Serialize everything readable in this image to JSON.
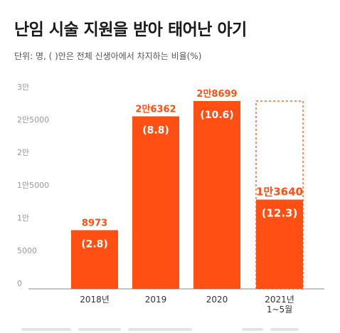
{
  "header": {
    "title": "난임 시술 지원을 받아 태어난 아기",
    "subtitle": "단위: 명, ( )안은 전체 신생아에서 차지하는 비율(%)"
  },
  "colors": {
    "bar": "#ff4f12",
    "bar_outline": "#ff6a3a",
    "value_label": "#ff4f12",
    "axis": "#9a9a9a",
    "gridline": "#e6e6e6",
    "pct_label": "#ffffff",
    "category_label": "#333333"
  },
  "chart_data": {
    "type": "bar",
    "title": "난임 시술 지원을 받아 태어난 아기",
    "subtitle": "단위: 명, ( )안은 전체 신생아에서 차지하는 비율(%)",
    "categories": [
      "2018년",
      "2019",
      "2020",
      "2021년\n1~5월"
    ],
    "values": [
      8973,
      26362,
      28699,
      13640
    ],
    "value_labels": [
      "8973",
      "2만6362",
      "2만8699",
      "1만3640"
    ],
    "percent_labels": [
      "(2.8)",
      "(8.8)",
      "(10.6)",
      "(12.3)"
    ],
    "ylim": [
      0,
      30000
    ],
    "yticks": [
      0,
      5000,
      10000,
      15000,
      20000,
      25000,
      30000
    ],
    "ytick_labels": [
      "0",
      "5000",
      "1만",
      "1만5000",
      "2만",
      "2만5000",
      "3만"
    ],
    "partial_period_outline": [
      false,
      false,
      false,
      true
    ],
    "grid": false,
    "legend": "none"
  }
}
